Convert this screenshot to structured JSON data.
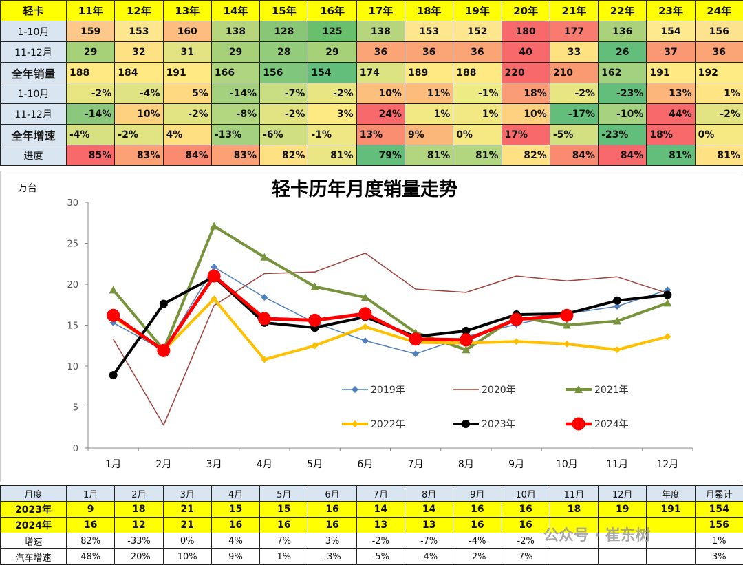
{
  "top_table": {
    "header": [
      "轻卡",
      "11年",
      "12年",
      "13年",
      "14年",
      "15年",
      "16年",
      "17年",
      "18年",
      "19年",
      "20年",
      "21年",
      "22年",
      "23年",
      "24年"
    ],
    "rows": [
      {
        "label": "1-10月",
        "strong": false,
        "align": "c",
        "values": [
          "159",
          "153",
          "160",
          "138",
          "128",
          "125",
          "138",
          "153",
          "152",
          "180",
          "177",
          "136",
          "154",
          "156"
        ],
        "colors": [
          "#fdc88a",
          "#fee68f",
          "#fdbd80",
          "#b6d57c",
          "#89c676",
          "#6abf6c",
          "#b6d57c",
          "#fee68f",
          "#fee68f",
          "#f8696b",
          "#f97a6e",
          "#a9d27a",
          "#fee98f",
          "#fee38e"
        ]
      },
      {
        "label": "11-12月",
        "strong": false,
        "align": "c",
        "values": [
          "29",
          "32",
          "31",
          "29",
          "28",
          "29",
          "36",
          "36",
          "36",
          "40",
          "33",
          "26",
          "37",
          "36"
        ],
        "colors": [
          "#a7d179",
          "#fee182",
          "#e2e383",
          "#a7d179",
          "#93cc7b",
          "#a7d179",
          "#fba576",
          "#fba576",
          "#fba576",
          "#f8696b",
          "#fee181",
          "#63be7b",
          "#fa9873",
          "#fba576"
        ]
      },
      {
        "label": "全年销量",
        "strong": true,
        "align": "l",
        "values": [
          "188",
          "184",
          "191",
          "166",
          "156",
          "154",
          "174",
          "189",
          "188",
          "220",
          "210",
          "162",
          "191",
          "192"
        ],
        "colors": [
          "#fee982",
          "#fee982",
          "#fee982",
          "#b0d580",
          "#80c77d",
          "#63be7b",
          "#dce382",
          "#fee982",
          "#fee982",
          "#f8696b",
          "#fa9a73",
          "#a2d17f",
          "#fee982",
          "#feeb84"
        ]
      },
      {
        "label": "1-10月",
        "strong": false,
        "align": "r",
        "values": [
          "-2%",
          "-4%",
          "5%",
          "-14%",
          "-7%",
          "-2%",
          "10%",
          "11%",
          "-1%",
          "18%",
          "-2%",
          "-23%",
          "13%",
          "1%"
        ],
        "colors": [
          "#e8e583",
          "#e0e383",
          "#fed981",
          "#a3d17f",
          "#c9dd82",
          "#e8e583",
          "#fcc07c",
          "#fcbc7b",
          "#edeb84",
          "#fa9c75",
          "#e8e583",
          "#63be7b",
          "#fcb57a",
          "#fee482"
        ]
      },
      {
        "label": "11-12月",
        "strong": false,
        "align": "r",
        "values": [
          "-14%",
          "10%",
          "-2%",
          "-8%",
          "-2%",
          "3%",
          "24%",
          "1%",
          "1%",
          "10%",
          "-17%",
          "-10%",
          "44%",
          "-2%"
        ],
        "colors": [
          "#8bc87d",
          "#fdd17f",
          "#e2e383",
          "#b3d680",
          "#e2e383",
          "#feea83",
          "#f8696b",
          "#f2e884",
          "#f2e884",
          "#fdd17f",
          "#63be7b",
          "#a7d27f",
          "#f8696b",
          "#e2e383"
        ]
      },
      {
        "label": "全年增速",
        "strong": true,
        "align": "l",
        "values": [
          "-4%",
          "-2%",
          "4%",
          "-13%",
          "-6%",
          "-1%",
          "13%",
          "9%",
          "0%",
          "17%",
          "-5%",
          "-23%",
          "18%",
          "0%"
        ],
        "colors": [
          "#d8e182",
          "#e2e383",
          "#fedf81",
          "#a4d17f",
          "#cfdf82",
          "#eee784",
          "#f98e71",
          "#fbb67a",
          "#f6e984",
          "#f8696b",
          "#d2e082",
          "#63be7b",
          "#f8696b",
          "#f6e984"
        ]
      },
      {
        "label": "进度",
        "strong": false,
        "align": "r",
        "values": [
          "85%",
          "83%",
          "84%",
          "83%",
          "82%",
          "81%",
          "79%",
          "81%",
          "81%",
          "82%",
          "84%",
          "84%",
          "81%",
          "81%"
        ],
        "colors": [
          "#f8696b",
          "#fba175",
          "#fa8b71",
          "#fba175",
          "#fee182",
          "#eae683",
          "#63be7b",
          "#b2d680",
          "#b2d680",
          "#fee182",
          "#fa8b71",
          "#f8696b",
          "#63be7b",
          "#fee182"
        ]
      }
    ]
  },
  "chart_data": {
    "type": "line",
    "title": "轻卡历年月度销量走势",
    "ylabel": "万台",
    "categories": [
      "1月",
      "2月",
      "3月",
      "4月",
      "5月",
      "6月",
      "7月",
      "8月",
      "9月",
      "10月",
      "11月",
      "12月"
    ],
    "ylim": [
      0,
      30
    ],
    "yticks": [
      "0",
      "5",
      "10",
      "15",
      "20",
      "25",
      "30"
    ],
    "legend_position": "lower-right",
    "series": [
      {
        "name": "2019年",
        "color": "#4f81bd",
        "width": 1.5,
        "marker": "diamond",
        "values": [
          15.3,
          11.9,
          22.1,
          18.4,
          15.3,
          13.1,
          11.5,
          13.6,
          15.1,
          16.4,
          17.3,
          19.3
        ]
      },
      {
        "name": "2020年",
        "color": "#a0403a",
        "width": 1.5,
        "marker": "none",
        "values": [
          13.3,
          2.8,
          17.4,
          21.3,
          21.5,
          23.8,
          19.4,
          19.0,
          21.0,
          20.4,
          20.9,
          18.9
        ]
      },
      {
        "name": "2021年",
        "color": "#77933c",
        "width": 4,
        "marker": "triangle",
        "values": [
          19.3,
          12.0,
          27.1,
          23.3,
          19.7,
          18.4,
          14.1,
          12.0,
          16.0,
          15.0,
          15.5,
          17.7
        ]
      },
      {
        "name": "2022年",
        "color": "#ffc000",
        "width": 4,
        "marker": "diamond",
        "values": [
          16.0,
          11.9,
          18.2,
          10.8,
          12.5,
          14.8,
          12.9,
          12.8,
          13.0,
          12.7,
          12.0,
          13.6
        ]
      },
      {
        "name": "2023年",
        "color": "#000000",
        "width": 4,
        "marker": "circle",
        "values": [
          8.9,
          17.6,
          20.9,
          15.3,
          14.7,
          16.0,
          13.6,
          14.3,
          16.3,
          16.4,
          18.0,
          18.7
        ]
      },
      {
        "name": "2024年",
        "color": "#ff0000",
        "width": 5,
        "marker": "bigcircle",
        "values": [
          16.2,
          11.9,
          21.0,
          15.8,
          15.6,
          16.4,
          13.3,
          13.2,
          15.7,
          16.2,
          null,
          null
        ]
      }
    ]
  },
  "bottom_table": {
    "header": [
      "月度",
      "1月",
      "2月",
      "3月",
      "4月",
      "5月",
      "6月",
      "7月",
      "8月",
      "9月",
      "10月",
      "11月",
      "12月",
      "年度",
      "月累计"
    ],
    "rows": [
      {
        "label": "2023年",
        "style": "y",
        "values": [
          "9",
          "18",
          "21",
          "15",
          "15",
          "16",
          "14",
          "14",
          "16",
          "16",
          "18",
          "19",
          "191",
          "154"
        ]
      },
      {
        "label": "2024年",
        "style": "y",
        "values": [
          "16",
          "12",
          "21",
          "16",
          "16",
          "16",
          "13",
          "13",
          "16",
          "16",
          "",
          "",
          "",
          "156"
        ]
      },
      {
        "label": "增速",
        "style": "w",
        "values": [
          "82%",
          "-33%",
          "0%",
          "4%",
          "7%",
          "3%",
          "-2%",
          "-7%",
          "-4%",
          "-2%",
          "",
          "",
          "",
          "1%"
        ]
      },
      {
        "label": "汽车增速",
        "style": "w",
        "values": [
          "48%",
          "-20%",
          "10%",
          "9%",
          "1%",
          "-3%",
          "-5%",
          "-4%",
          "-2%",
          "7%",
          "",
          "",
          "",
          "3%"
        ]
      }
    ]
  },
  "watermark": "公众号 · 崔东树"
}
